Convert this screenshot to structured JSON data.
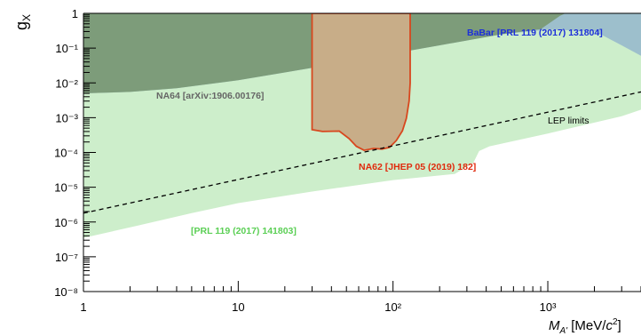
{
  "chart_data": {
    "type": "area",
    "xscale": "log",
    "yscale": "log",
    "xlim": [
      1,
      4000
    ],
    "ylim": [
      1e-08,
      1
    ],
    "x_ticks": [
      {
        "value": 1,
        "label": "1"
      },
      {
        "value": 10,
        "label": "10"
      },
      {
        "value": 100,
        "label": "10²"
      },
      {
        "value": 1000,
        "label": "10³"
      }
    ],
    "y_ticks": [
      {
        "value": 1,
        "label": "1"
      },
      {
        "value": 0.1,
        "label": "10⁻¹"
      },
      {
        "value": 0.01,
        "label": "10⁻²"
      },
      {
        "value": 0.001,
        "label": "10⁻³"
      },
      {
        "value": 0.0001,
        "label": "10⁻⁴"
      },
      {
        "value": 1e-05,
        "label": "10⁻⁵"
      },
      {
        "value": 1e-06,
        "label": "10⁻⁶"
      },
      {
        "value": 1e-07,
        "label": "10⁻⁷"
      },
      {
        "value": 1e-08,
        "label": "10⁻⁸"
      }
    ],
    "xlabel": "M_A' [MeV/c²]",
    "ylabel": "g_X",
    "series": [
      {
        "name": "[PRL 119 (2017) 141803]",
        "color": "#cdeecb",
        "label_color": "#5bcf55",
        "points": [
          [
            1,
            3.5e-07
          ],
          [
            2,
            7e-07
          ],
          [
            5,
            1.8e-06
          ],
          [
            10,
            3.5e-06
          ],
          [
            30,
            7.5e-06
          ],
          [
            100,
            1.6e-05
          ],
          [
            250,
            2.4e-05
          ],
          [
            330,
            5e-05
          ],
          [
            360,
            0.00011
          ],
          [
            420,
            0.00015
          ],
          [
            1000,
            0.00035
          ],
          [
            3000,
            0.0011
          ],
          [
            4000,
            0.0017
          ],
          [
            4000,
            1
          ],
          [
            1,
            1
          ]
        ]
      },
      {
        "name": "BaBar [PRL 119 (2017) 131804]",
        "color": "#9dbfcc",
        "label_color": "#1c2fd9",
        "points": [
          [
            1,
            1
          ],
          [
            1,
            0.005
          ],
          [
            2,
            0.0055
          ],
          [
            4,
            0.007
          ],
          [
            10,
            0.012
          ],
          [
            20,
            0.02
          ],
          [
            50,
            0.04
          ],
          [
            100,
            0.07
          ],
          [
            200,
            0.12
          ],
          [
            500,
            0.25
          ],
          [
            1000,
            0.34
          ],
          [
            2000,
            0.31
          ],
          [
            3000,
            0.12
          ],
          [
            4000,
            0.06
          ],
          [
            4000,
            1
          ]
        ]
      },
      {
        "name": "NA64 [arXiv:1906.00176]",
        "color": "#7d9c7a",
        "label_color": "#666666",
        "points": [
          [
            1,
            1
          ],
          [
            1,
            0.005
          ],
          [
            2,
            0.0055
          ],
          [
            4,
            0.007
          ],
          [
            10,
            0.012
          ],
          [
            20,
            0.02
          ],
          [
            50,
            0.04
          ],
          [
            100,
            0.07
          ],
          [
            200,
            0.12
          ],
          [
            500,
            0.25
          ],
          [
            900,
            0.35
          ],
          [
            1200,
            0.85
          ],
          [
            1300,
            1
          ]
        ]
      },
      {
        "name": "NA62 [JHEP 05 (2019) 182]",
        "color": "#c8ad88",
        "label_color": "#e02a0d",
        "points": [
          [
            30,
            1
          ],
          [
            30,
            0.00045
          ],
          [
            35,
            0.0004
          ],
          [
            45,
            0.00041
          ],
          [
            52,
            0.00025
          ],
          [
            58,
            0.00015
          ],
          [
            65,
            0.000115
          ],
          [
            75,
            0.00013
          ],
          [
            85,
            0.000125
          ],
          [
            95,
            0.00014
          ],
          [
            105,
            0.00022
          ],
          [
            115,
            0.00042
          ],
          [
            122,
            0.00095
          ],
          [
            127,
            0.003
          ],
          [
            129,
            0.01
          ],
          [
            129,
            1
          ]
        ]
      },
      {
        "name": "LEP limits",
        "color": "#000000",
        "label_color": "#000000",
        "line": "dashed",
        "points": [
          [
            1,
            1.8e-06
          ],
          [
            4000,
            0.0055
          ]
        ]
      }
    ]
  },
  "annotations": {
    "babar": "BaBar [PRL 119 (2017) 131804]",
    "na64": "NA64 [arXiv:1906.00176]",
    "lep": "LEP limits",
    "na62": "NA62 [JHEP 05 (2019) 182]",
    "prl": "[PRL 119 (2017) 141803]"
  }
}
